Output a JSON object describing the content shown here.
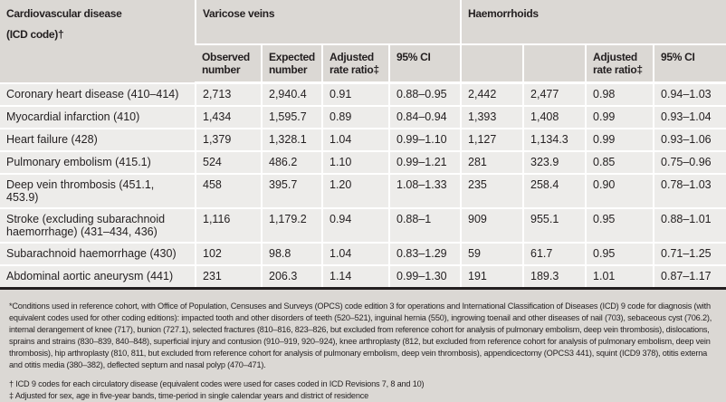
{
  "header": {
    "col1_line1": "Cardiovascular disease",
    "col1_line2": "(ICD code)†",
    "group1": "Varicose veins",
    "group2": "Haemorrhoids",
    "sub": [
      "Observed number",
      "Expected number",
      "Adjusted rate ratio‡",
      "95% CI",
      "",
      "",
      "Adjusted rate ratio‡",
      "95% CI"
    ]
  },
  "rows": [
    {
      "disease": "Coronary heart disease (410–414)",
      "v": [
        "2,713",
        "2,940.4",
        "0.91",
        "0.88–0.95"
      ],
      "h": [
        "2,442",
        "2,477",
        "0.98",
        "0.94–1.03"
      ]
    },
    {
      "disease": "Myocardial infarction (410)",
      "v": [
        "1,434",
        "1,595.7",
        "0.89",
        "0.84–0.94"
      ],
      "h": [
        "1,393",
        "1,408",
        "0.99",
        "0.93–1.04"
      ]
    },
    {
      "disease": "Heart failure (428)",
      "v": [
        "1,379",
        "1,328.1",
        "1.04",
        "0.99–1.10"
      ],
      "h": [
        "1,127",
        "1,134.3",
        "0.99",
        "0.93–1.06"
      ]
    },
    {
      "disease": "Pulmonary embolism (415.1)",
      "v": [
        "524",
        "486.2",
        "1.10",
        "0.99–1.21"
      ],
      "h": [
        "281",
        "323.9",
        "0.85",
        "0.75–0.96"
      ]
    },
    {
      "disease": "Deep vein thrombosis (451.1, 453.9)",
      "v": [
        "458",
        "395.7",
        "1.20",
        "1.08–1.33"
      ],
      "h": [
        "235",
        "258.4",
        "0.90",
        "0.78–1.03"
      ]
    },
    {
      "disease": "Stroke (excluding subarachnoid haemorrhage) (431–434, 436)",
      "v": [
        "1,116",
        "1,179.2",
        "0.94",
        "0.88–1"
      ],
      "h": [
        "909",
        "955.1",
        "0.95",
        "0.88–1.01"
      ]
    },
    {
      "disease": "Subarachnoid haemorrhage (430)",
      "v": [
        "102",
        "98.8",
        "1.04",
        "0.83–1.29"
      ],
      "h": [
        "59",
        "61.7",
        "0.95",
        "0.71–1.25"
      ]
    },
    {
      "disease": "Abdominal aortic aneurysm (441)",
      "v": [
        "231",
        "206.3",
        "1.14",
        "0.99–1.30"
      ],
      "h": [
        "191",
        "189.3",
        "1.01",
        "0.87–1.17"
      ]
    }
  ],
  "footnotes": {
    "star": "*Conditions used in reference cohort, with Office of Population, Censuses and Surveys (OPCS) code edition 3 for operations and International Classification of Diseases (ICD) 9 code for diagnosis (with equivalent codes used for other coding editions): impacted tooth and other disorders of teeth (520–521), inguinal hernia (550), ingrowing toenail and other diseases of nail (703), sebaceous cyst (706.2), internal derangement of knee (717), bunion (727.1), selected fractures (810–816, 823–826, but excluded from reference cohort for analysis of pulmonary embolism, deep vein thrombosis), dislocations, sprains and strains (830–839, 840–848), superficial injury and contusion (910–919, 920–924), knee arthroplasty (812, but excluded from reference cohort for analysis of pulmonary embolism, deep vein thrombosis), hip arthroplasty (810, 811, but excluded from reference cohort for analysis of pulmonary embolism, deep vein thrombosis), appendicectomy (OPCS3 441), squint (ICD9 378), otitis externa and otitis media (380–382), deflected septum and nasal polyp (470–471).",
    "dagger": "† ICD 9 codes for each circulatory disease (equivalent codes were used for cases coded in ICD Revisions 7, 8 and 10)",
    "ddagger": "‡ Adjusted for sex, age in five-year bands, time-period in single calendar years and district of residence"
  }
}
